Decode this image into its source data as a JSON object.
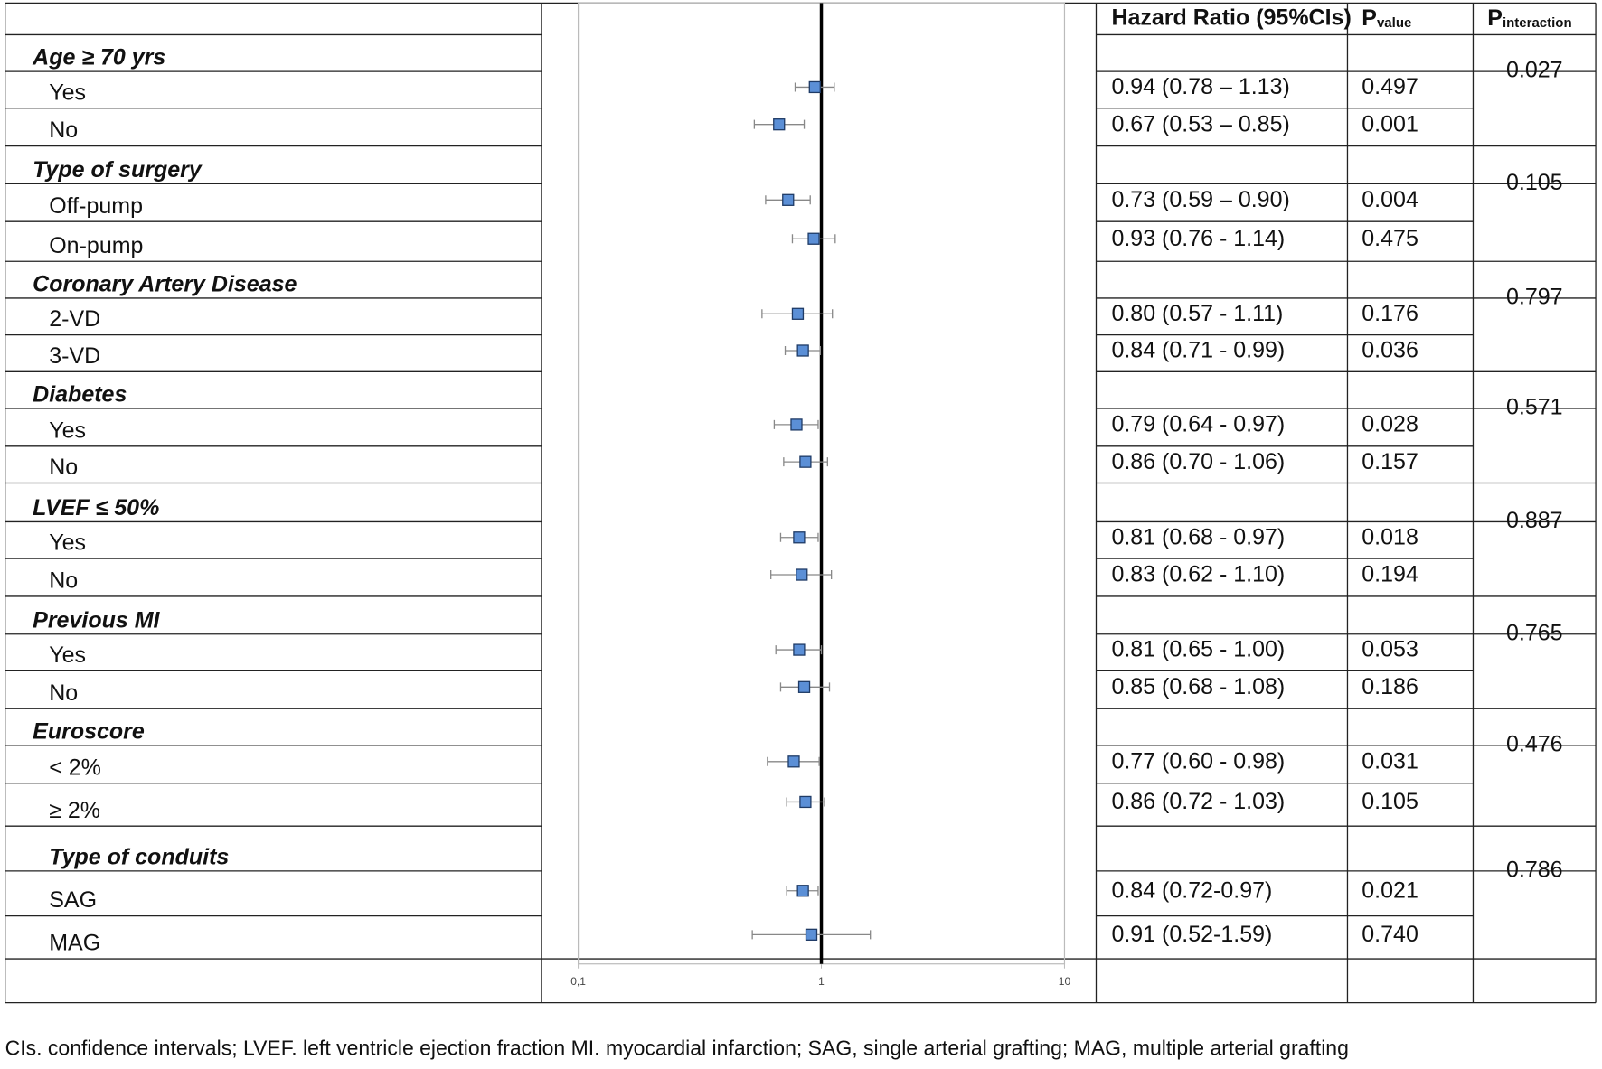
{
  "chart_data": {
    "type": "forest",
    "headers": {
      "hr": "Hazard Ratio (95%CIs)",
      "p_value": {
        "text": "P",
        "sub": "value"
      },
      "p_interaction": {
        "text": "P",
        "sub": "interaction"
      }
    },
    "groups": [
      {
        "name": "Age ≥ 70 yrs",
        "p_interaction": "0.027"
      },
      {
        "name": "Type of surgery",
        "p_interaction": "0.105"
      },
      {
        "name": "Coronary Artery Disease",
        "p_interaction": "0.797"
      },
      {
        "name": "Diabetes",
        "p_interaction": "0.571"
      },
      {
        "name": "LVEF ≤ 50%",
        "p_interaction": "0.887"
      },
      {
        "name": "Previous MI",
        "p_interaction": "0.765"
      },
      {
        "name": "Euroscore",
        "p_interaction": "0.476"
      },
      {
        "name": "Type of conduits",
        "p_interaction": "0.786"
      }
    ],
    "categories": [
      "Yes",
      "No",
      "Off-pump",
      "On-pump",
      "2-VD",
      "3-VD",
      "Yes",
      "No",
      "Yes",
      "No",
      "Yes",
      "No",
      "< 2%",
      "≥ 2%",
      "SAG",
      "MAG"
    ],
    "values": [
      0.94,
      0.67,
      0.73,
      0.93,
      0.8,
      0.84,
      0.79,
      0.86,
      0.81,
      0.83,
      0.81,
      0.85,
      0.77,
      0.86,
      0.84,
      0.91
    ],
    "lower": [
      0.78,
      0.53,
      0.59,
      0.76,
      0.57,
      0.71,
      0.64,
      0.7,
      0.68,
      0.62,
      0.65,
      0.68,
      0.6,
      0.72,
      0.72,
      0.52
    ],
    "upper": [
      1.13,
      0.85,
      0.9,
      1.14,
      1.11,
      0.99,
      0.97,
      1.06,
      0.97,
      1.1,
      1.0,
      1.08,
      0.98,
      1.03,
      0.97,
      1.59
    ],
    "value_labels": [
      "0.94 (0.78 – 1.13)",
      "0.67 (0.53 – 0.85)",
      "0.73 (0.59 – 0.90)",
      "0.93 (0.76 - 1.14)",
      "0.80 (0.57 - 1.11)",
      "0.84 (0.71 - 0.99)",
      "0.79 (0.64 - 0.97)",
      "0.86 (0.70 - 1.06)",
      "0.81 (0.68 - 0.97)",
      "0.83 (0.62 - 1.10)",
      "0.81 (0.65 - 1.00)",
      "0.85 (0.68 - 1.08)",
      "0.77 (0.60 - 0.98)",
      "0.86 (0.72 - 1.03)",
      "0.84 (0.72-0.97)",
      "0.91 (0.52-1.59)"
    ],
    "p_values": [
      "0.497",
      "0.001",
      "0.004",
      "0.475",
      "0.176",
      "0.036",
      "0.028",
      "0.157",
      "0.018",
      "0.194",
      "0.053",
      "0.186",
      "0.031",
      "0.105",
      "0.021",
      "0.740"
    ],
    "xlim": [
      0.1,
      10
    ],
    "xticks": [
      {
        "value": 0.1,
        "label": "0,1"
      },
      1,
      10
    ],
    "log_x": true,
    "reference_line": 1,
    "color": "#5b8fd6",
    "note": "CIs. confidence intervals; LVEF. left ventricle ejection fraction MI. myocardial infarction; SAG, single arterial grafting; MAG, multiple arterial grafting"
  }
}
